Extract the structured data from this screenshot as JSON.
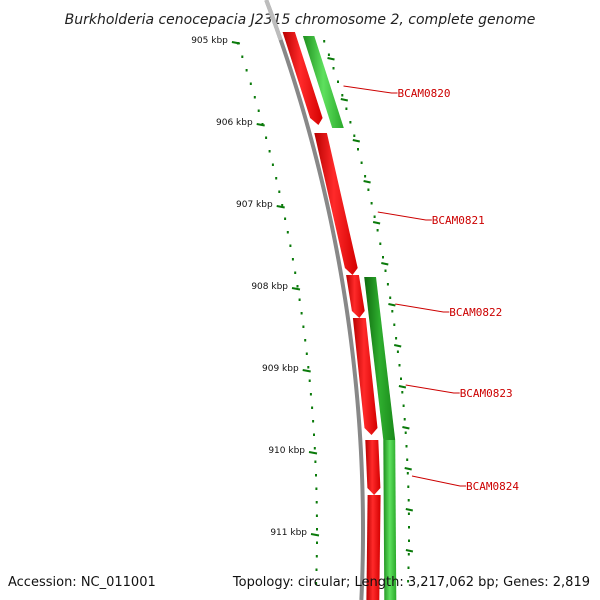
{
  "title": "Burkholderia cenocepacia J2315 chromosome 2, complete genome",
  "accession": "Accession: NC_011001",
  "topology": "Topology: circular; Length: 3,217,062 bp; Genes: 2,819",
  "colors": {
    "backbone": "#888888",
    "reverse_gene": "#ff0000",
    "forward_gene": "#33cc33",
    "tick": "#0a7a0a",
    "label": "#cc0000"
  },
  "scale_labels": [
    "905 kbp",
    "906 kbp",
    "907 kbp",
    "908 kbp",
    "909 kbp",
    "910 kbp",
    "911 kbp"
  ],
  "genes": [
    {
      "name": "BCAM0820",
      "strand": "+"
    },
    {
      "name": "BCAM0821",
      "strand": "-"
    },
    {
      "name": "BCAM0822",
      "strand": "+"
    },
    {
      "name": "BCAM0823",
      "strand": "-"
    },
    {
      "name": "BCAM0824",
      "strand": "+"
    }
  ]
}
